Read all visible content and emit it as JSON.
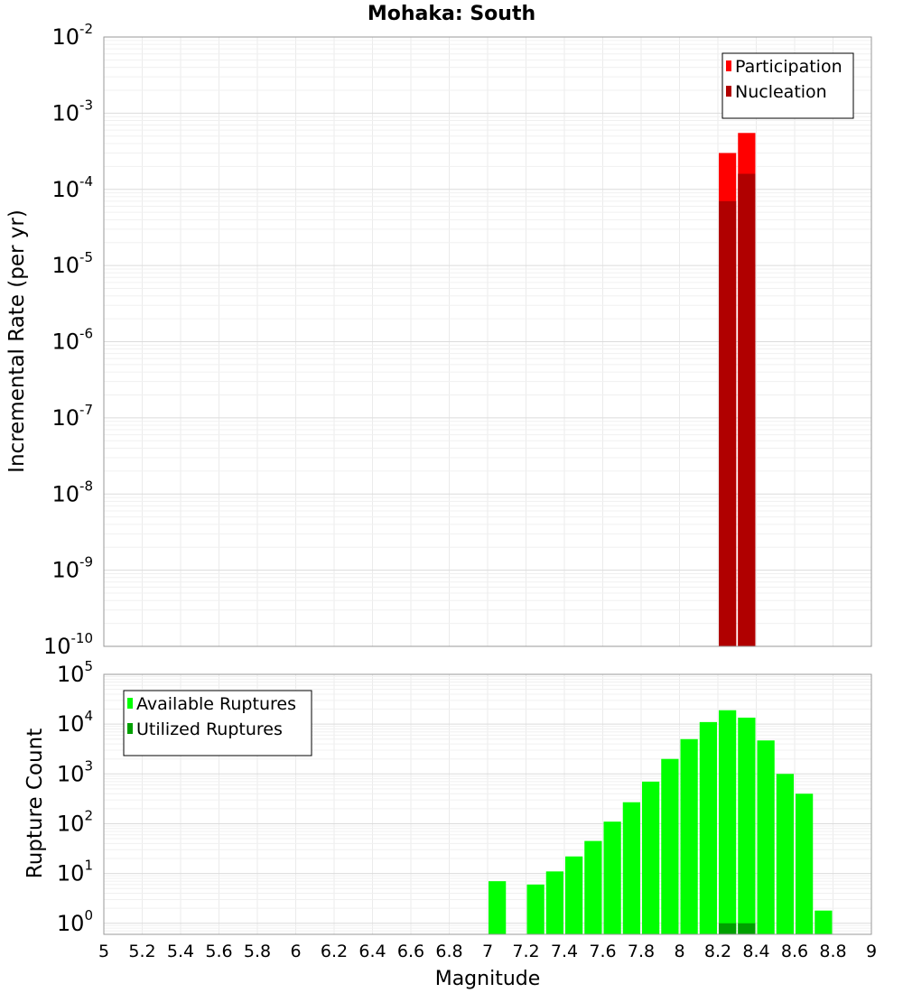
{
  "chart_data": [
    {
      "type": "bar",
      "title": "Mohaka: South",
      "ylabel": "Incremental Rate (per yr)",
      "yscale": "log",
      "ylim": [
        1e-10,
        0.01
      ],
      "xlim": [
        5,
        9
      ],
      "y_tick_exponents": [
        -10,
        -9,
        -8,
        -7,
        -6,
        -5,
        -4,
        -3,
        -2
      ],
      "legend_position": "top-right",
      "bar_width": 0.1,
      "grid": true,
      "series": [
        {
          "name": "Participation",
          "color": "#ff0000",
          "points": [
            {
              "x": 8.25,
              "y": 0.0003
            },
            {
              "x": 8.35,
              "y": 0.00055
            }
          ]
        },
        {
          "name": "Nucleation",
          "color": "#b00000",
          "points": [
            {
              "x": 8.25,
              "y": 7e-05
            },
            {
              "x": 8.35,
              "y": 0.00016
            }
          ]
        }
      ]
    },
    {
      "type": "bar",
      "ylabel": "Rupture Count",
      "xlabel": "Magnitude",
      "yscale": "log",
      "ylim": [
        0.6,
        100000.0
      ],
      "xlim": [
        5,
        9
      ],
      "y_tick_exponents": [
        0,
        1,
        2,
        3,
        4,
        5
      ],
      "x_ticks": [
        "5",
        "5.2",
        "5.4",
        "5.6",
        "5.8",
        "6",
        "6.2",
        "6.4",
        "6.6",
        "6.8",
        "7",
        "7.2",
        "7.4",
        "7.6",
        "7.8",
        "8",
        "8.2",
        "8.4",
        "8.6",
        "8.8",
        "9"
      ],
      "legend_position": "top-left",
      "bar_width": 0.1,
      "grid": true,
      "series": [
        {
          "name": "Available Ruptures",
          "color": "#00ff00",
          "points": [
            {
              "x": 7.05,
              "y": 7
            },
            {
              "x": 7.25,
              "y": 6
            },
            {
              "x": 7.35,
              "y": 11
            },
            {
              "x": 7.45,
              "y": 22
            },
            {
              "x": 7.55,
              "y": 45
            },
            {
              "x": 7.65,
              "y": 110
            },
            {
              "x": 7.75,
              "y": 270
            },
            {
              "x": 7.85,
              "y": 700
            },
            {
              "x": 7.95,
              "y": 2000
            },
            {
              "x": 8.05,
              "y": 5000
            },
            {
              "x": 8.15,
              "y": 11000
            },
            {
              "x": 8.25,
              "y": 19000
            },
            {
              "x": 8.35,
              "y": 13500
            },
            {
              "x": 8.45,
              "y": 4700
            },
            {
              "x": 8.55,
              "y": 1000
            },
            {
              "x": 8.65,
              "y": 400
            },
            {
              "x": 8.75,
              "y": 1.8
            }
          ]
        },
        {
          "name": "Utilized Ruptures",
          "color": "#00a000",
          "points": [
            {
              "x": 8.25,
              "y": 1
            },
            {
              "x": 8.35,
              "y": 1
            }
          ]
        }
      ]
    }
  ]
}
